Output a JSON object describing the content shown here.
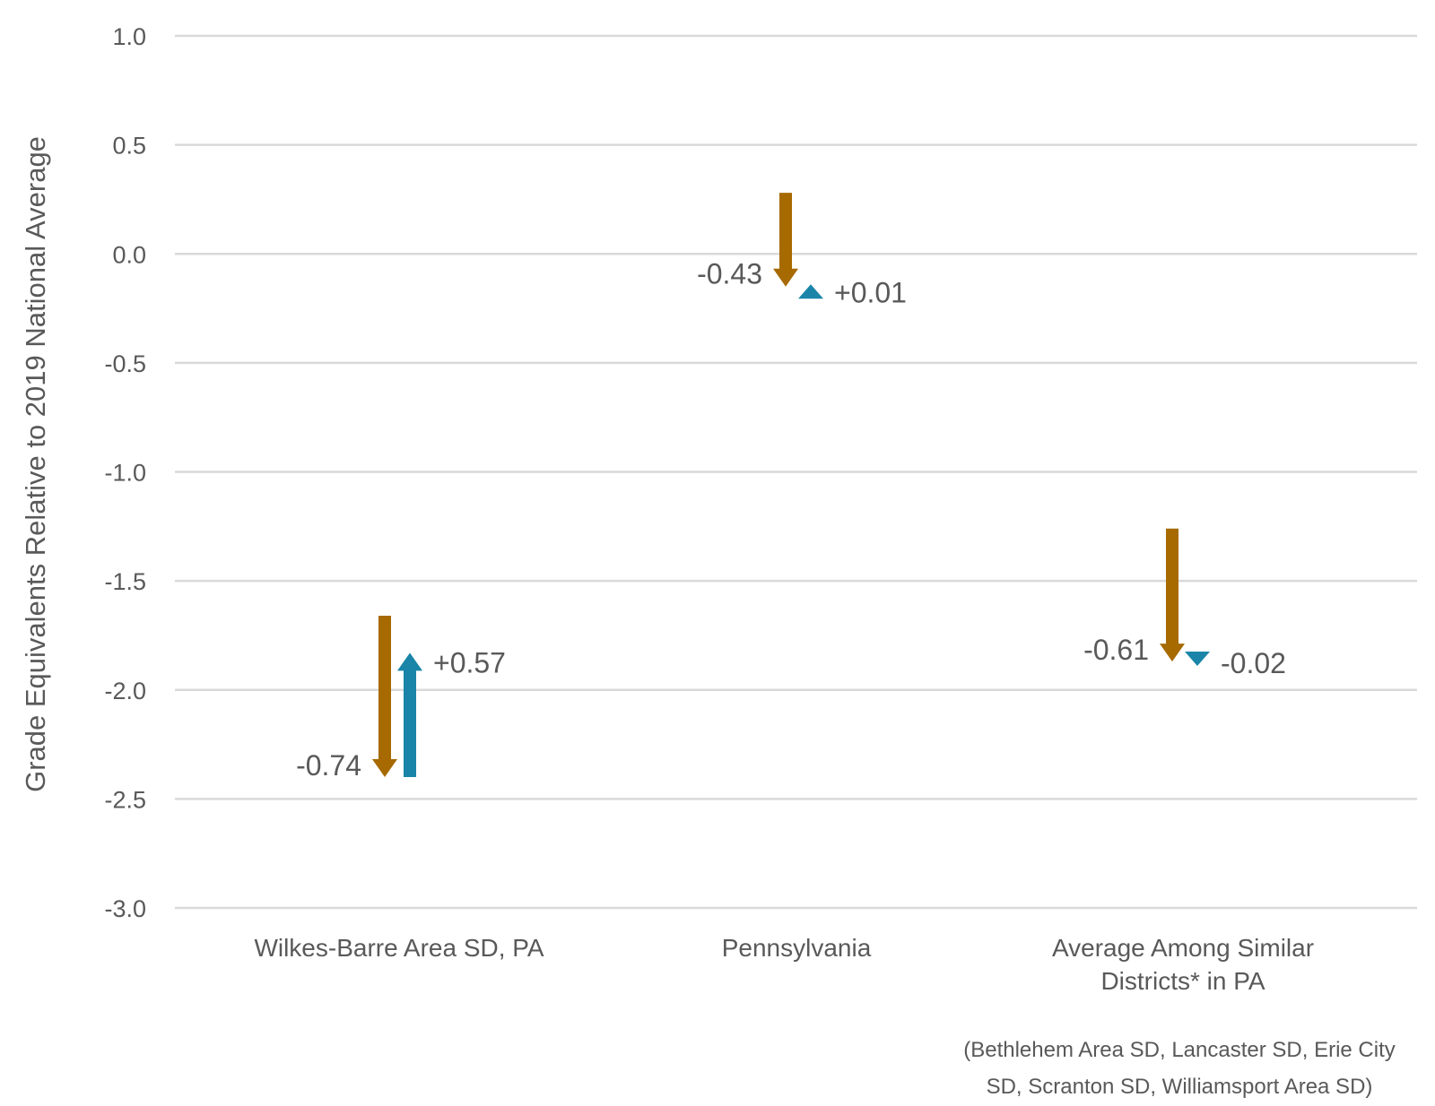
{
  "chart_data": {
    "type": "arrow",
    "ylabel": "Grade Equivalents Relative to 2019 National Average",
    "xlabel": "",
    "ylim": [
      -3.0,
      1.0
    ],
    "y_ticks": [
      "1.0",
      "0.5",
      "0.0",
      "-0.5",
      "-1.0",
      "-1.5",
      "-2.0",
      "-2.5",
      "-3.0"
    ],
    "grid": true,
    "categories": [
      {
        "label_lines": [
          "Wilkes-Barre Area SD, PA"
        ]
      },
      {
        "label_lines": [
          "Pennsylvania"
        ]
      },
      {
        "label_lines": [
          "Average Among Similar",
          "Districts* in PA"
        ]
      }
    ],
    "series": [
      {
        "color": "#a66a00",
        "arrows": [
          {
            "category": 0,
            "from": -1.66,
            "to": -2.4,
            "change": -0.74,
            "label": "-0.74"
          },
          {
            "category": 1,
            "from": 0.28,
            "to": -0.15,
            "change": -0.43,
            "label": "-0.43"
          },
          {
            "category": 2,
            "from": -1.26,
            "to": -1.87,
            "change": -0.61,
            "label": "-0.61"
          }
        ]
      },
      {
        "color": "#1a85a8",
        "arrows": [
          {
            "category": 0,
            "from": -2.4,
            "to": -1.83,
            "change": 0.57,
            "label": "+0.57"
          },
          {
            "category": 1,
            "from": -0.15,
            "to": -0.14,
            "change": 0.01,
            "label": "+0.01"
          },
          {
            "category": 2,
            "from": -1.87,
            "to": -1.89,
            "change": -0.02,
            "label": "-0.02"
          }
        ]
      }
    ],
    "footnote_lines": [
      "(Bethlehem Area SD, Lancaster SD, Erie City",
      "SD, Scranton SD, Williamsport Area SD)"
    ]
  }
}
